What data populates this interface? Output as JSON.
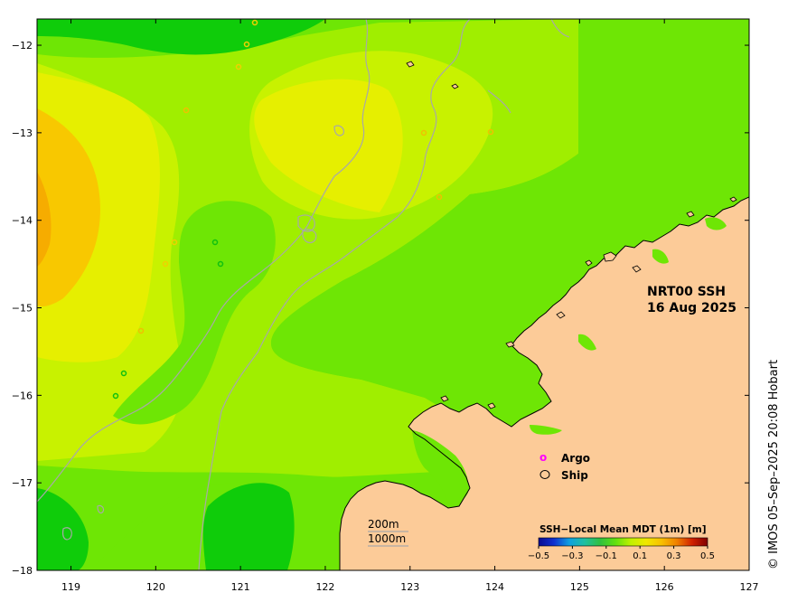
{
  "map": {
    "title_line1": "NRT00 SSH",
    "title_line2": "16 Aug 2025",
    "credit": "© IMOS 05–Sep–2025 20:08 Hobart",
    "lon_ticks": [
      "119",
      "120",
      "121",
      "122",
      "123",
      "124",
      "125",
      "126",
      "127"
    ],
    "lat_ticks": [
      "−12",
      "−13",
      "−14",
      "−15",
      "−16",
      "−17",
      "−18"
    ],
    "lon_values": [
      119,
      120,
      121,
      122,
      123,
      124,
      125,
      126,
      127
    ],
    "lat_values": [
      -12,
      -13,
      -14,
      -15,
      -16,
      -17,
      -18
    ],
    "lon_range": [
      118.6,
      127
    ],
    "lat_range": [
      -18,
      -11.7
    ]
  },
  "legend": {
    "argo_marker": "o",
    "argo_label": "Argo",
    "ship_label": "Ship",
    "argo_color": "#ff00ff"
  },
  "scale": {
    "label_200m": "200m",
    "label_1000m": "1000m"
  },
  "colorbar": {
    "title": "SSH−Local Mean MDT (1m) [m]",
    "ticks": [
      "−0.5",
      "−0.3",
      "−0.1",
      "0.1",
      "0.3",
      "0.5"
    ],
    "tick_values": [
      -0.5,
      -0.3,
      -0.1,
      0.1,
      0.3,
      0.5
    ],
    "range": [
      -0.5,
      0.5
    ],
    "colors": [
      "#0a0a90",
      "#1030d0",
      "#10a0e0",
      "#20c0a0",
      "#30c040",
      "#60e010",
      "#c0f000",
      "#f0e800",
      "#f8c000",
      "#f08000",
      "#d02000",
      "#800000"
    ]
  },
  "colors": {
    "land": "#fccb98",
    "ocean_green": "#6ee605",
    "ocean_darkgreen": "#0fcc0a",
    "ocean_lightgreen": "#a0ee00",
    "ocean_yellowgreen": "#c8f200",
    "ocean_yellow": "#e6ef00",
    "ocean_yellow2": "#f5e400",
    "ocean_orange": "#f8c800",
    "ocean_darkorange": "#f6ac00",
    "contour": "#a8a8a8"
  }
}
